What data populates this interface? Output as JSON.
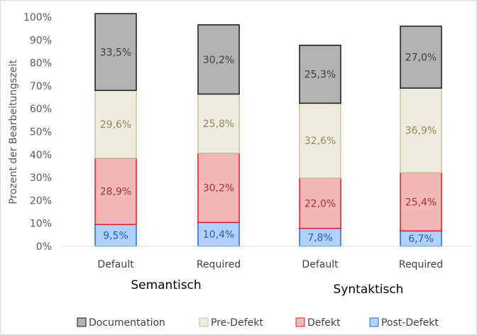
{
  "chart_data": {
    "type": "bar",
    "stacked": true,
    "percent_stacked": true,
    "ylabel": "Prozent der Bearbeitungszeit",
    "ylim": [
      0,
      100
    ],
    "yticks": [
      "0%",
      "10%",
      "20%",
      "30%",
      "40%",
      "50%",
      "60%",
      "70%",
      "80%",
      "90%",
      "100%"
    ],
    "categories": [
      "Default",
      "Required",
      "Default",
      "Required"
    ],
    "groups": [
      {
        "label": "Semantisch",
        "categories": [
          0,
          1
        ]
      },
      {
        "label": "Syntaktisch",
        "categories": [
          2,
          3
        ]
      }
    ],
    "legend_position": "bottom",
    "series": [
      {
        "name": "Post-Defekt",
        "values": [
          9.5,
          10.4,
          7.8,
          6.7
        ],
        "labels": [
          "9,5%",
          "10,4%",
          "7,8%",
          "6,7%"
        ],
        "fill": "#b3d1ff",
        "stroke": "#1f6fe0",
        "label_color": "#1f5fb8"
      },
      {
        "name": "Defekt",
        "values": [
          28.9,
          30.2,
          22.0,
          25.4
        ],
        "labels": [
          "28,9%",
          "30,2%",
          "22,0%",
          "25,4%"
        ],
        "fill": "#f2b8b8",
        "stroke": "#d42020",
        "label_color": "#a83232"
      },
      {
        "name": "Pre-Defekt",
        "values": [
          29.6,
          25.8,
          32.6,
          36.9
        ],
        "labels": [
          "29,6%",
          "25,8%",
          "32,6%",
          "36,9%"
        ],
        "fill": "#eeece1",
        "stroke": "#c9c1a0",
        "label_color": "#948a54"
      },
      {
        "name": "Documentation",
        "values": [
          33.5,
          30.2,
          25.3,
          27.0
        ],
        "labels": [
          "33,5%",
          "30,2%",
          "25,3%",
          "27,0%"
        ],
        "fill": "#b2b2b2",
        "stroke": "#1a1a1a",
        "label_color": "#404040"
      }
    ],
    "legend_order": [
      "Documentation",
      "Pre-Defekt",
      "Defekt",
      "Post-Defekt"
    ]
  }
}
